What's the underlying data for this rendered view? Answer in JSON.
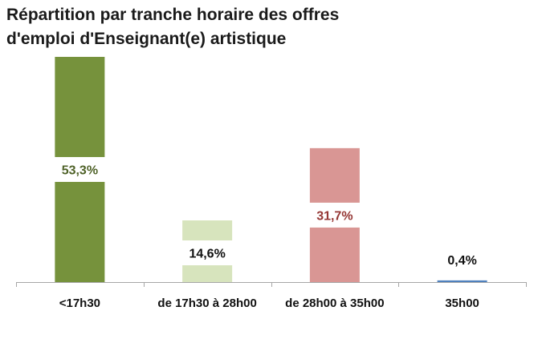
{
  "title": {
    "line1": "Répartition par tranche horaire des offres",
    "line2": "d'emploi d'Enseignant(e) artistique"
  },
  "chart_data": {
    "type": "bar",
    "title": "Répartition par tranche horaire des offres d'emploi d'Enseignant(e) artistique",
    "xlabel": "",
    "ylabel": "",
    "ylim": [
      0,
      55
    ],
    "grid": false,
    "legend": "none",
    "categories": [
      "<17h30",
      "de 17h30 à 28h00",
      "de 28h00 à 35h00",
      "35h00"
    ],
    "values": [
      53.3,
      14.6,
      31.7,
      0.4
    ],
    "value_labels": [
      "53,3%",
      "14,6%",
      "31,7%",
      "0,4%"
    ],
    "bar_colors": [
      "#76923c",
      "#d7e4bd",
      "#d99694",
      "#4f81bd"
    ],
    "label_colors": [
      "#4f6228",
      "#111111",
      "#953735",
      "#111111"
    ]
  }
}
